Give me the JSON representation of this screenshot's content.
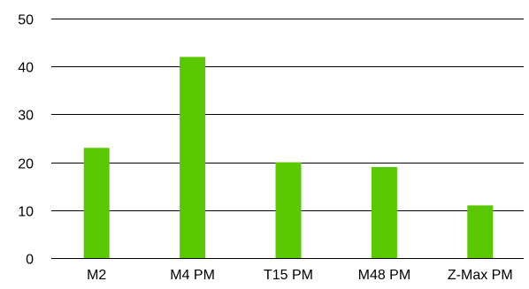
{
  "chart_data": {
    "type": "bar",
    "categories": [
      "M2",
      "M4 PM",
      "T15 PM",
      "M48 PM",
      "Z-Max PM"
    ],
    "values": [
      23,
      42,
      20,
      19,
      11
    ],
    "ylim": [
      0,
      50
    ],
    "yticks": [
      0,
      10,
      20,
      30,
      40,
      50
    ],
    "ytick_labels": [
      "0",
      "10",
      "20",
      "30",
      "40",
      "50"
    ],
    "grid": true,
    "legend": false,
    "colors": {
      "bar": "#5ac800",
      "grid": "#000000",
      "text": "#000000",
      "background": "#ffffff"
    }
  }
}
